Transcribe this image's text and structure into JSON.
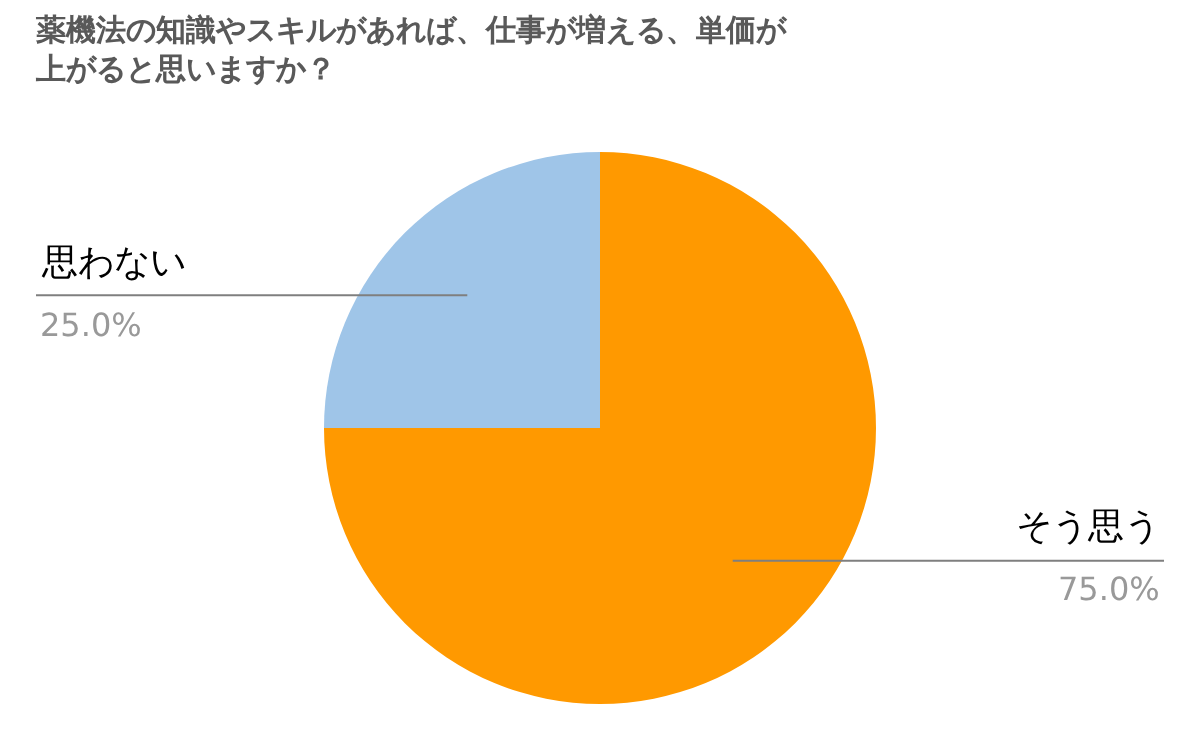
{
  "chart_data": {
    "type": "pie",
    "title": "薬機法の知識やスキルがあれば、仕事が増える、単価が上がると思いますか？",
    "categories": [
      "そう思う",
      "思わない"
    ],
    "values": [
      75,
      25
    ],
    "value_labels": [
      "75.0%",
      "25.0%"
    ],
    "colors": [
      "#ff9900",
      "#9fc5e8"
    ],
    "legend": false
  }
}
